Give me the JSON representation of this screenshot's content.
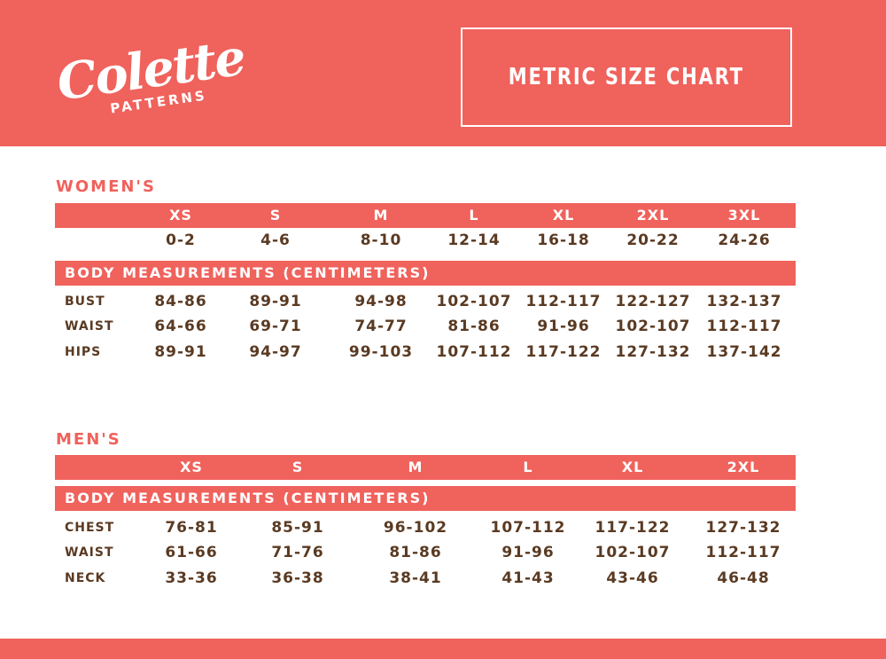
{
  "brand": {
    "logo_main": "Colette",
    "logo_sub": "PATTERNS"
  },
  "title": "METRIC SIZE CHART",
  "womens": {
    "heading": "WOMEN'S",
    "sizes": [
      "XS",
      "S",
      "M",
      "L",
      "XL",
      "2XL",
      "3XL"
    ],
    "numeric_sizes": [
      "0-2",
      "4-6",
      "8-10",
      "12-14",
      "16-18",
      "20-22",
      "24-26"
    ],
    "measurements_label": "BODY MEASUREMENTS (CENTIMETERS)",
    "rows": [
      {
        "label": "BUST",
        "values": [
          "84-86",
          "89-91",
          "94-98",
          "102-107",
          "112-117",
          "122-127",
          "132-137"
        ]
      },
      {
        "label": "WAIST",
        "values": [
          "64-66",
          "69-71",
          "74-77",
          "81-86",
          "91-96",
          "102-107",
          "112-117"
        ]
      },
      {
        "label": "HIPS",
        "values": [
          "89-91",
          "94-97",
          "99-103",
          "107-112",
          "117-122",
          "127-132",
          "137-142"
        ]
      }
    ]
  },
  "mens": {
    "heading": "MEN'S",
    "sizes": [
      "XS",
      "S",
      "M",
      "L",
      "XL",
      "2XL"
    ],
    "measurements_label": "BODY MEASUREMENTS (CENTIMETERS)",
    "rows": [
      {
        "label": "CHEST",
        "values": [
          "76-81",
          "85-91",
          "96-102",
          "107-112",
          "117-122",
          "127-132"
        ]
      },
      {
        "label": "WAIST",
        "values": [
          "61-66",
          "71-76",
          "81-86",
          "91-96",
          "102-107",
          "112-117"
        ]
      },
      {
        "label": "NECK",
        "values": [
          "33-36",
          "36-38",
          "38-41",
          "41-43",
          "43-46",
          "46-48"
        ]
      }
    ]
  },
  "colors": {
    "accent": "#f0625c",
    "text": "#5a3a22"
  }
}
